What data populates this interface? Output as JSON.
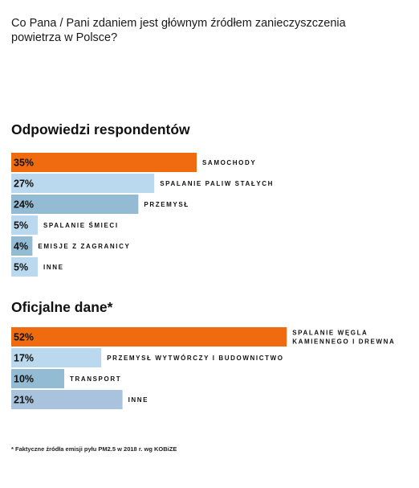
{
  "question": "Co Pana / Pani zdaniem jest głównym źródłem zanieczyszczenia powietrza w Polsce?",
  "footnote": "* Faktyczne źródła emisji pyłu PM2.5 w 2018 r. wg KOBiZE",
  "colors": {
    "orange": "#f06a0f",
    "light_blue": "#bad8ee",
    "mid_blue": "#93bbd4",
    "blue_gray": "#a9c3de",
    "text": "#111111"
  },
  "chart_data": [
    {
      "type": "bar",
      "title": "Odpowiedzi respondentów",
      "unit": "%",
      "categories": [
        "SAMOCHODY",
        "SPALANIE PALIW STAŁYCH",
        "PRZEMYSŁ",
        "SPALANIE ŚMIECI",
        "EMISJE Z ZAGRANICY",
        "INNE"
      ],
      "values": [
        35,
        27,
        24,
        5,
        4,
        5
      ],
      "value_labels": [
        "35%",
        "27%",
        "24%",
        "5%",
        "4%",
        "5%"
      ],
      "bar_colors": [
        "#f06a0f",
        "#bad8ee",
        "#93bbd4",
        "#bad8ee",
        "#93bbd4",
        "#bad8ee"
      ]
    },
    {
      "type": "bar",
      "title": "Oficjalne dane*",
      "unit": "%",
      "categories": [
        "SPALANIE WĘGLA KAMIENNEGO I DREWNA",
        "PRZEMYSŁ WYTWÓRCZY I BUDOWNICTWO",
        "TRANSPORT",
        "INNE"
      ],
      "category_lines": [
        [
          "SPALANIE WĘGLA",
          "KAMIENNEGO I DREWNA"
        ],
        [
          "PRZEMYSŁ WYTWÓRCZY I BUDOWNICTWO"
        ],
        [
          "TRANSPORT"
        ],
        [
          "INNE"
        ]
      ],
      "values": [
        52,
        17,
        10,
        21
      ],
      "value_labels": [
        "52%",
        "17%",
        "10%",
        "21%"
      ],
      "bar_colors": [
        "#f06a0f",
        "#bad8ee",
        "#93bbd4",
        "#a9c3de"
      ]
    }
  ]
}
